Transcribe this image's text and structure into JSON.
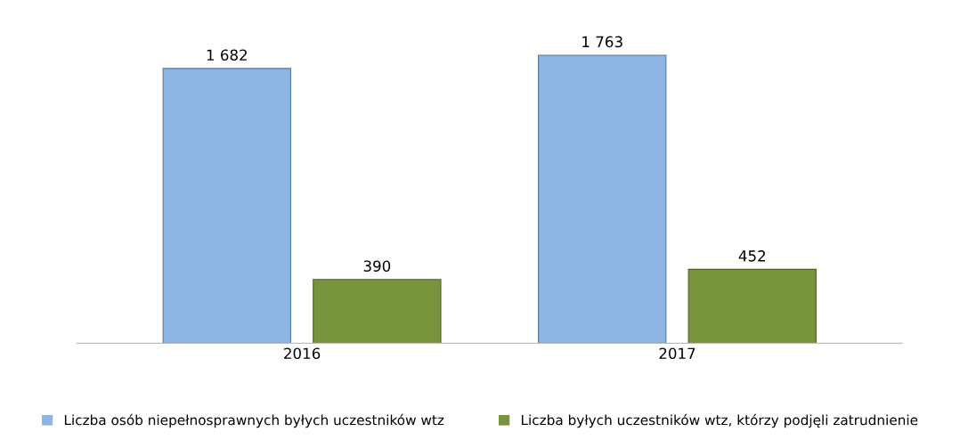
{
  "chart_data": {
    "type": "bar",
    "categories": [
      "2016",
      "2017"
    ],
    "series": [
      {
        "name": "Liczba osób niepełnosprawnych byłych uczestników wtz",
        "color": "#8db4e2",
        "values": [
          1682,
          1763
        ],
        "value_labels": [
          "1 682",
          "1 763"
        ]
      },
      {
        "name": "Liczba byłych uczestników wtz, którzy podjęli zatrudnienie",
        "color": "#77933c",
        "values": [
          390,
          452
        ],
        "value_labels": [
          "390",
          "452"
        ]
      }
    ],
    "tick_labels": "x",
    "grid": false,
    "legend": "bottom"
  }
}
